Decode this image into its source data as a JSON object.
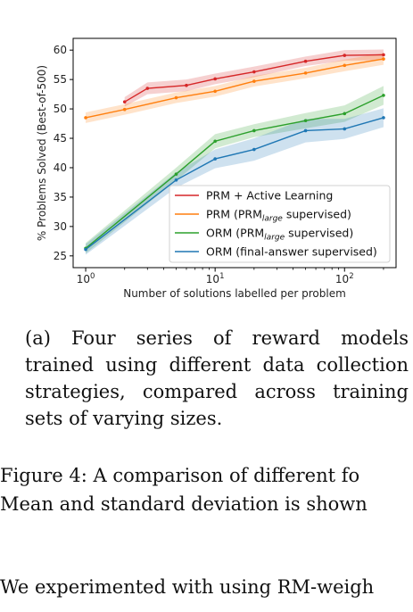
{
  "chart_data": {
    "type": "line",
    "xlabel": "Number of solutions labelled per problem",
    "ylabel": "% Problems Solved (Best-of-500)",
    "xscale": "log",
    "xlim": [
      0.8,
      250
    ],
    "ylim": [
      23,
      62
    ],
    "yticks": [
      25,
      30,
      35,
      40,
      45,
      50,
      55,
      60
    ],
    "xticks": [
      1,
      10,
      100
    ],
    "xtick_labels": [
      {
        "base": "10",
        "exp": "0"
      },
      {
        "base": "10",
        "exp": "1"
      },
      {
        "base": "10",
        "exp": "2"
      }
    ],
    "grid": false,
    "legend_position": "lower-right",
    "series": [
      {
        "name": "PRM + Active Learning",
        "legend": {
          "main": "PRM + Active Learning",
          "sub": "",
          "tail": ""
        },
        "color": "#d62728",
        "x": [
          2,
          3,
          6,
          10,
          20,
          50,
          100,
          200
        ],
        "y": [
          51.2,
          53.5,
          54.0,
          55.1,
          56.3,
          58.1,
          59.1,
          59.2
        ],
        "std": [
          0.8,
          1.0,
          1.0,
          0.9,
          0.9,
          0.8,
          0.9,
          0.9
        ]
      },
      {
        "name": "PRM (PRM_large supervised)",
        "legend": {
          "main": "PRM (PRM",
          "sub": "large",
          "tail": " supervised)"
        },
        "color": "#ff7f0e",
        "x": [
          1,
          2,
          5,
          10,
          20,
          50,
          100,
          200
        ],
        "y": [
          48.5,
          49.9,
          51.9,
          53.0,
          54.7,
          56.1,
          57.4,
          58.5
        ],
        "std": [
          0.9,
          0.9,
          0.9,
          0.9,
          0.9,
          0.9,
          1.0,
          1.0
        ]
      },
      {
        "name": "ORM (PRM_large supervised)",
        "legend": {
          "main": "ORM (PRM",
          "sub": "large",
          "tail": " supervised)"
        },
        "color": "#2ca02c",
        "x": [
          1,
          5,
          10,
          20,
          50,
          100,
          200
        ],
        "y": [
          26.3,
          38.9,
          44.5,
          46.3,
          48.0,
          49.2,
          52.3
        ],
        "std": [
          0.9,
          1.1,
          1.2,
          1.1,
          1.3,
          1.4,
          1.6
        ]
      },
      {
        "name": "ORM (final-answer supervised)",
        "legend": {
          "main": "ORM (final-answer supervised)",
          "sub": "",
          "tail": ""
        },
        "color": "#1f77b4",
        "x": [
          1,
          5,
          10,
          20,
          50,
          100,
          200
        ],
        "y": [
          26.1,
          37.9,
          41.5,
          43.1,
          46.3,
          46.6,
          48.5
        ],
        "std": [
          0.9,
          1.3,
          1.6,
          1.9,
          2.0,
          1.7,
          1.6
        ]
      }
    ]
  },
  "caption": {
    "lines": [
      "(a) Four series of reward models",
      "trained using different data collection",
      "strategies, compared across training",
      "sets of varying sizes."
    ]
  },
  "figure_caption": {
    "line1": "Figure 4: A comparison of different fo",
    "line2": "Mean and standard deviation is shown"
  },
  "body_text": {
    "line1": "We experimented with using RM-weigh"
  }
}
